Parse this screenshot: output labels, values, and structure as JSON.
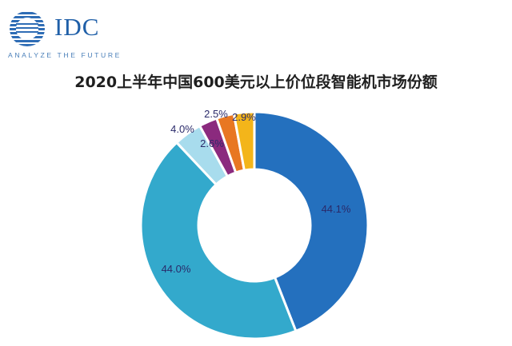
{
  "brand": {
    "name": "IDC",
    "tagline": "ANALYZE THE FUTURE",
    "color": "#1f5fa8"
  },
  "chart_data": {
    "type": "pie",
    "variant": "donut",
    "title": "2020上半年中国600美元以上价位段智能机市场份额",
    "slices": [
      {
        "value": 44.1,
        "label": "44.1%",
        "color": "#2470be"
      },
      {
        "value": 44.0,
        "label": "44.0%",
        "color": "#33a9cc"
      },
      {
        "value": 4.0,
        "label": "4.0%",
        "color": "#a8dced"
      },
      {
        "value": 2.6,
        "label": "2.6%",
        "color": "#8b2a7e"
      },
      {
        "value": 2.5,
        "label": "2.5%",
        "color": "#e87722"
      },
      {
        "value": 2.9,
        "label": "2.9%",
        "color": "#f3b51a"
      }
    ],
    "legend": "none"
  }
}
